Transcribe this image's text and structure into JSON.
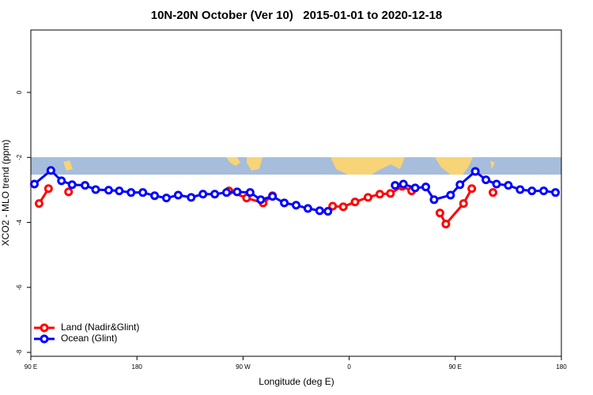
{
  "chart_data": {
    "type": "line",
    "title": "10N-20N October (Ver 10)   2015-01-01 to 2020-12-18",
    "x_label": "Longitude (deg E)",
    "y_label": "XCO2 - MLO trend (ppm)",
    "xlim": [
      90,
      540
    ],
    "ylim": [
      -8.12,
      1.92
    ],
    "xticks": [
      {
        "value": 90,
        "label": "90 E"
      },
      180,
      {
        "value": 270,
        "label": "90 W"
      },
      {
        "value": 360,
        "label": "0"
      },
      {
        "value": 450,
        "label": "90 E"
      },
      {
        "value": 540,
        "label": "180"
      }
    ],
    "yticks": [
      -8,
      -6,
      -4,
      -2,
      0
    ],
    "legend": "bottom-left",
    "series": [
      {
        "name": "Land (Nadir&Glint)",
        "color": "#ff0000",
        "x": [
          97,
          105,
          null,
          122,
          null,
          258,
          273,
          287,
          295,
          null,
          346,
          355,
          365,
          376,
          386,
          395,
          405,
          413,
          null,
          437,
          442,
          457,
          464,
          null,
          482
        ],
        "values": [
          -3.42,
          -2.96,
          null,
          -3.06,
          null,
          -3.03,
          -3.25,
          -3.4,
          -3.18,
          null,
          -3.5,
          -3.52,
          -3.37,
          -3.23,
          -3.13,
          -3.11,
          -2.89,
          -3.03,
          null,
          -3.71,
          -4.05,
          -3.42,
          -2.96,
          null,
          -3.08
        ]
      },
      {
        "name": "Ocean (Glint)",
        "color": "#0000ff",
        "x": [
          93,
          107,
          116,
          125,
          136,
          145,
          156,
          165,
          175,
          185,
          195,
          205,
          215,
          226,
          236,
          246,
          256,
          265,
          276,
          285,
          295,
          305,
          315,
          325,
          335,
          342,
          null,
          399,
          406,
          416,
          425,
          432,
          446,
          454,
          467,
          476,
          485,
          495,
          505,
          515,
          525,
          535
        ],
        "values": [
          -2.82,
          -2.4,
          -2.72,
          -2.84,
          -2.86,
          -2.99,
          -3.01,
          -3.03,
          -3.08,
          -3.08,
          -3.18,
          -3.25,
          -3.16,
          -3.23,
          -3.13,
          -3.13,
          -3.08,
          -3.06,
          -3.08,
          -3.3,
          -3.2,
          -3.4,
          -3.47,
          -3.57,
          -3.64,
          -3.66,
          null,
          -2.86,
          -2.82,
          -2.94,
          -2.91,
          -3.3,
          -3.16,
          -2.84,
          -2.43,
          -2.69,
          -2.82,
          -2.86,
          -2.99,
          -3.03,
          -3.03,
          -3.08
        ]
      }
    ]
  }
}
